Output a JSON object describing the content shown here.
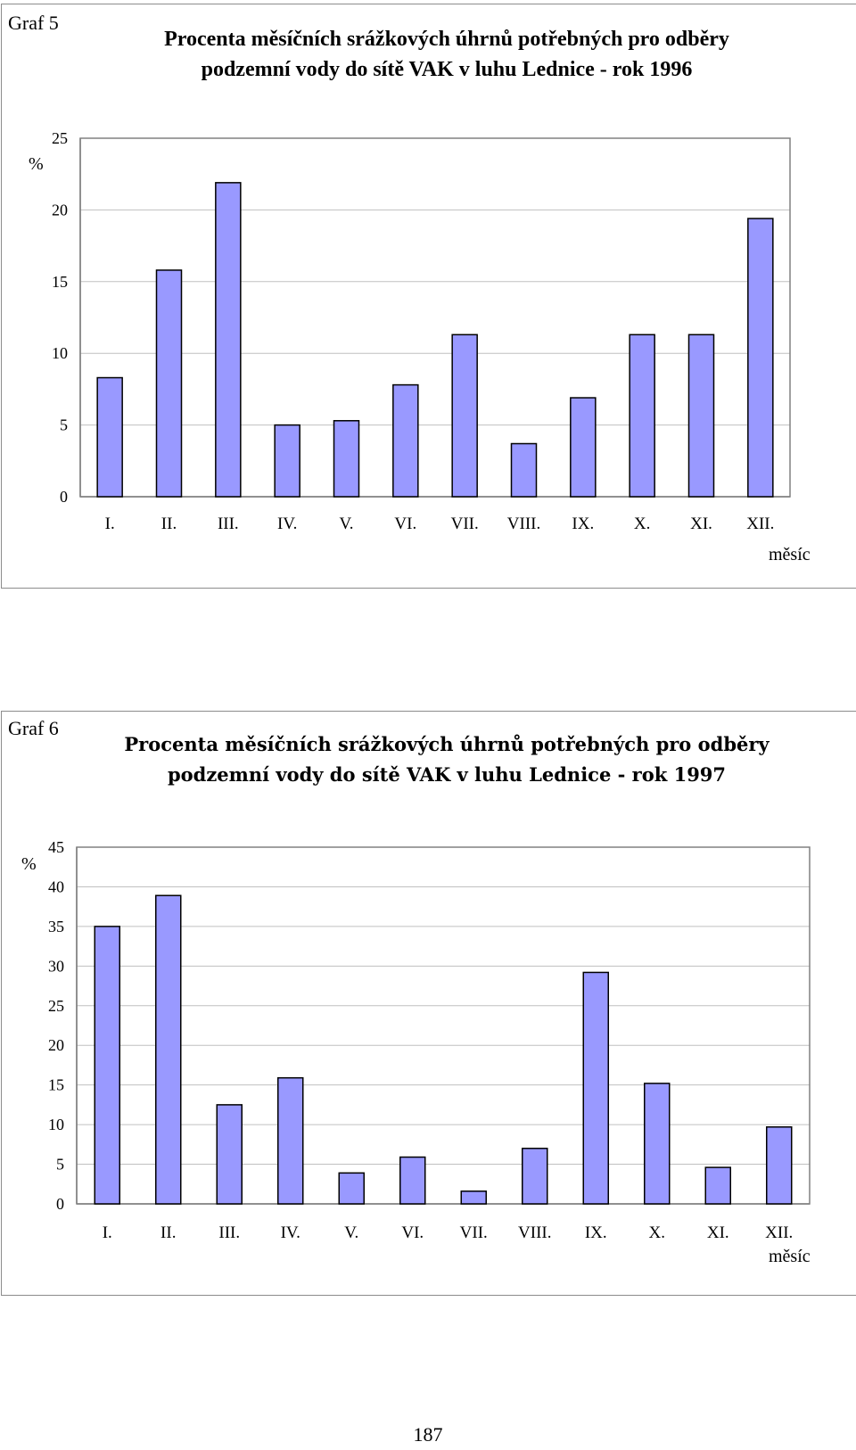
{
  "charts": [
    {
      "graf_label": "Graf 5",
      "title_line1": "Procenta měsíčních srážkových úhrnů potřebných pro odběry",
      "title_line2": "podzemní vody do sítě VAK v luhu Lednice - rok 1996",
      "ylabel": "%",
      "xlabel": "měsíc"
    },
    {
      "graf_label": "Graf 6",
      "title_line1": "Procenta měsíčních srážkových úhrnů potřebných pro odběry",
      "title_line2": "podzemní vody do sítě VAK v luhu  Lednice - rok 1997",
      "ylabel": "%",
      "xlabel": "měsíc"
    }
  ],
  "page_number": "187",
  "colors": {
    "bar_fill": "#9999ff",
    "bar_stroke": "#000000",
    "grid": "#c0c0c0",
    "axis": "#808080"
  },
  "chart_data": [
    {
      "type": "bar",
      "title": "Procenta měsíčních srážkových úhrnů potřebných pro odběry podzemní vody do sítě VAK v luhu Lednice - rok 1996",
      "xlabel": "měsíc",
      "ylabel": "%",
      "categories": [
        "I.",
        "II.",
        "III.",
        "IV.",
        "V.",
        "VI.",
        "VII.",
        "VIII.",
        "IX.",
        "X.",
        "XI.",
        "XII."
      ],
      "values": [
        8.3,
        15.8,
        21.9,
        5.0,
        5.3,
        7.8,
        11.3,
        3.7,
        6.9,
        11.3,
        11.3,
        19.4
      ],
      "ylim": [
        0,
        25
      ],
      "yticks": [
        0,
        5,
        10,
        15,
        20,
        25
      ],
      "grid": true
    },
    {
      "type": "bar",
      "title": "Procenta měsíčních srážkových úhrnů potřebných pro odběry podzemní vody do sítě VAK v luhu Lednice - rok 1997",
      "xlabel": "měsíc",
      "ylabel": "%",
      "categories": [
        "I.",
        "II.",
        "III.",
        "IV.",
        "V.",
        "VI.",
        "VII.",
        "VIII.",
        "IX.",
        "X.",
        "XI.",
        "XII."
      ],
      "values": [
        35.0,
        38.9,
        12.5,
        15.9,
        3.9,
        5.9,
        1.6,
        7.0,
        29.2,
        15.2,
        4.6,
        9.7
      ],
      "ylim": [
        0,
        45
      ],
      "yticks": [
        0,
        5,
        10,
        15,
        20,
        25,
        30,
        35,
        40,
        45
      ],
      "grid": true
    }
  ]
}
